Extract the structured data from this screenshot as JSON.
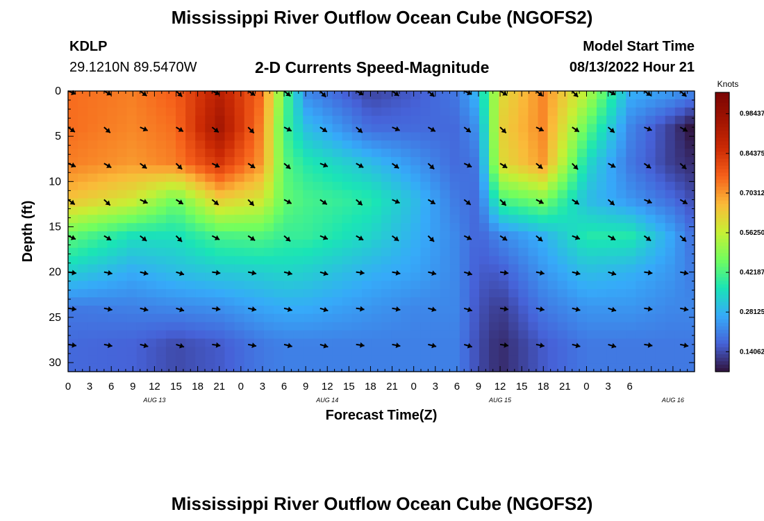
{
  "page": {
    "title": "Mississippi River Outflow Ocean Cube (NGOFS2)",
    "bottom_title": "Mississippi River Outflow Ocean Cube (NGOFS2)",
    "station_id": "KDLP",
    "station_coords": "29.1210N  89.5470W",
    "subtitle": "2-D Currents Speed-Magnitude",
    "model_start_label": "Model Start Time",
    "model_start_value": "08/13/2022 Hour 21"
  },
  "chart_data": {
    "type": "heatmap",
    "title": "2-D Currents Speed-Magnitude",
    "xlabel": "Forecast Time(Z)",
    "ylabel": "Depth (ft)",
    "x_tick_labels": [
      "0",
      "3",
      "6",
      "9",
      "12",
      "15",
      "18",
      "21",
      "0",
      "3",
      "6",
      "9",
      "12",
      "15",
      "18",
      "21",
      "0",
      "3",
      "6",
      "9",
      "12",
      "15",
      "18",
      "21",
      "0",
      "3",
      "6"
    ],
    "date_labels": [
      "AUG 13",
      "AUG 14",
      "AUG 15",
      "AUG 16"
    ],
    "y_ticks": [
      0,
      5,
      10,
      15,
      20,
      25,
      30
    ],
    "ylim": [
      0,
      31
    ],
    "colorbar": {
      "title": "Knots",
      "tick_labels": [
        "0.98437",
        "0.84375",
        "0.70312",
        "0.56250",
        "0.42187",
        "0.28125",
        "0.14062"
      ],
      "range": [
        0.07,
        1.06
      ]
    },
    "key_columns": [
      {
        "time_h": 0,
        "profile": [
          0.75,
          0.75,
          0.73,
          0.65,
          0.45,
          0.33,
          0.2,
          0.18
        ]
      },
      {
        "time_h": 9,
        "profile": [
          0.73,
          0.72,
          0.7,
          0.58,
          0.36,
          0.27,
          0.21,
          0.17
        ]
      },
      {
        "time_h": 15,
        "profile": [
          0.77,
          0.75,
          0.73,
          0.46,
          0.36,
          0.3,
          0.22,
          0.14
        ]
      },
      {
        "time_h": 21,
        "profile": [
          0.9,
          0.95,
          0.84,
          0.63,
          0.42,
          0.32,
          0.23,
          0.16
        ]
      },
      {
        "time_h": 27,
        "profile": [
          0.75,
          0.72,
          0.7,
          0.58,
          0.43,
          0.33,
          0.26,
          0.2
        ]
      },
      {
        "time_h": 30,
        "profile": [
          0.45,
          0.42,
          0.44,
          0.45,
          0.4,
          0.34,
          0.27,
          0.21
        ]
      },
      {
        "time_h": 33,
        "profile": [
          0.22,
          0.3,
          0.38,
          0.42,
          0.4,
          0.33,
          0.27,
          0.21
        ]
      },
      {
        "time_h": 42,
        "profile": [
          0.13,
          0.18,
          0.3,
          0.38,
          0.34,
          0.28,
          0.24,
          0.21
        ]
      },
      {
        "time_h": 48,
        "profile": [
          0.16,
          0.18,
          0.24,
          0.3,
          0.28,
          0.26,
          0.22,
          0.21
        ]
      },
      {
        "time_h": 54,
        "profile": [
          0.2,
          0.18,
          0.18,
          0.2,
          0.22,
          0.22,
          0.22,
          0.21
        ]
      },
      {
        "time_h": 57,
        "profile": [
          0.3,
          0.24,
          0.2,
          0.18,
          0.17,
          0.16,
          0.15,
          0.14
        ]
      },
      {
        "time_h": 60,
        "profile": [
          0.6,
          0.62,
          0.6,
          0.42,
          0.22,
          0.16,
          0.12,
          0.1
        ]
      },
      {
        "time_h": 66,
        "profile": [
          0.72,
          0.72,
          0.7,
          0.48,
          0.28,
          0.24,
          0.2,
          0.16
        ]
      },
      {
        "time_h": 72,
        "profile": [
          0.55,
          0.45,
          0.35,
          0.3,
          0.38,
          0.3,
          0.24,
          0.2
        ]
      },
      {
        "time_h": 78,
        "profile": [
          0.28,
          0.22,
          0.2,
          0.24,
          0.38,
          0.28,
          0.24,
          0.2
        ]
      },
      {
        "time_h": 84,
        "profile": [
          0.25,
          0.12,
          0.12,
          0.18,
          0.26,
          0.24,
          0.22,
          0.2
        ]
      },
      {
        "time_h": 87,
        "profile": [
          0.22,
          0.06,
          0.1,
          0.14,
          0.18,
          0.2,
          0.22,
          0.2
        ]
      }
    ],
    "profile_depths_ft": [
      0,
      4,
      8,
      12,
      16,
      20,
      24,
      28
    ]
  }
}
